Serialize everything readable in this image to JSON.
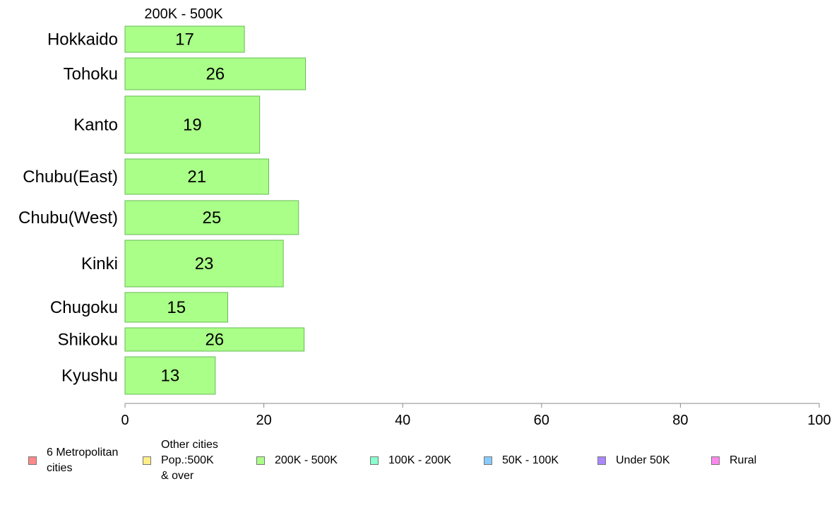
{
  "chart_data": {
    "type": "bar",
    "orientation": "horizontal",
    "title": "200K - 500K",
    "categories": [
      "Hokkaido",
      "Tohoku",
      "Kanto",
      "Chubu(East)",
      "Chubu(West)",
      "Kinki",
      "Chugoku",
      "Shikoku",
      "Kyushu"
    ],
    "values": [
      17.2,
      26,
      19.4,
      20.7,
      25,
      22.8,
      14.8,
      25.8,
      13
    ],
    "value_labels": [
      "17",
      "26",
      "19",
      "21",
      "25",
      "23",
      "15",
      "26",
      "13"
    ],
    "bar_color": "#aaff88",
    "bar_stroke": "#66bb55",
    "xlim": [
      0,
      100
    ],
    "x_ticks": [
      "0",
      "20",
      "40",
      "60",
      "80",
      "100"
    ],
    "xlabel": "",
    "ylabel": "",
    "grid": false,
    "legend_position": "bottom"
  },
  "legend": [
    {
      "label": "6 Metropolitan\n cities",
      "color": "#ff8888"
    },
    {
      "label": "Other cities\nPop.:500K\n & over",
      "color": "#ffee88"
    },
    {
      "label": "200K - 500K",
      "color": "#aaff88"
    },
    {
      "label": "100K - 200K",
      "color": "#88ffcc"
    },
    {
      "label": "50K - 100K",
      "color": "#88ccff"
    },
    {
      "label": "Under 50K",
      "color": "#aa88ff"
    },
    {
      "label": "Rural",
      "color": "#ff88ee"
    }
  ]
}
